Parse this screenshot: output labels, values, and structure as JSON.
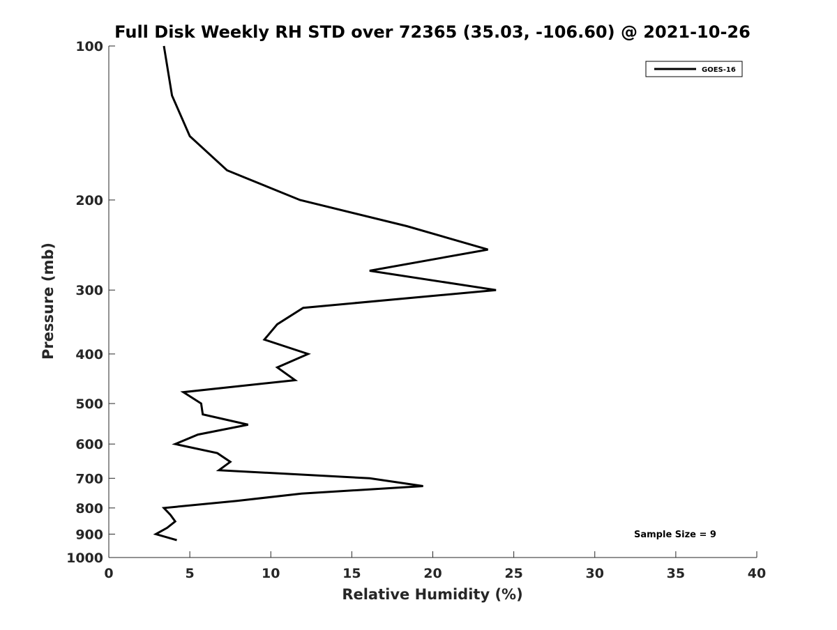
{
  "chart_data": {
    "type": "line",
    "title": "Full Disk Weekly RH STD over 72365 (35.03, -106.60) @ 2021-10-26",
    "xlabel": "Relative Humidity (%)",
    "ylabel": "Pressure (mb)",
    "xlim": [
      0,
      40
    ],
    "ylim": [
      100,
      1000
    ],
    "y_scale": "log",
    "y_reversed": true,
    "grid": false,
    "legend_position": "top-right",
    "x_ticks": [
      0,
      5,
      10,
      15,
      20,
      25,
      30,
      35,
      40
    ],
    "x_tick_labels": [
      "0",
      "5",
      "10",
      "15",
      "20",
      "25",
      "30",
      "35",
      "40"
    ],
    "y_ticks": [
      100,
      200,
      300,
      400,
      500,
      600,
      700,
      800,
      900,
      1000
    ],
    "y_tick_labels": [
      "100",
      "200",
      "300",
      "400",
      "500",
      "600",
      "700",
      "800",
      "900",
      "1000"
    ],
    "series": [
      {
        "name": "GOES-16",
        "color": "#000000",
        "points": [
          {
            "x": 3.4,
            "p": 100
          },
          {
            "x": 3.9,
            "p": 125
          },
          {
            "x": 5.0,
            "p": 150
          },
          {
            "x": 7.3,
            "p": 175
          },
          {
            "x": 11.8,
            "p": 200
          },
          {
            "x": 18.4,
            "p": 225
          },
          {
            "x": 23.4,
            "p": 250
          },
          {
            "x": 16.1,
            "p": 275
          },
          {
            "x": 23.9,
            "p": 300
          },
          {
            "x": 12.0,
            "p": 325
          },
          {
            "x": 10.4,
            "p": 350
          },
          {
            "x": 9.6,
            "p": 375
          },
          {
            "x": 12.3,
            "p": 400
          },
          {
            "x": 10.4,
            "p": 425
          },
          {
            "x": 11.5,
            "p": 450
          },
          {
            "x": 4.6,
            "p": 475
          },
          {
            "x": 5.7,
            "p": 500
          },
          {
            "x": 5.8,
            "p": 525
          },
          {
            "x": 8.6,
            "p": 550
          },
          {
            "x": 5.5,
            "p": 575
          },
          {
            "x": 4.1,
            "p": 600
          },
          {
            "x": 6.7,
            "p": 625
          },
          {
            "x": 7.5,
            "p": 650
          },
          {
            "x": 6.8,
            "p": 675
          },
          {
            "x": 16.1,
            "p": 700
          },
          {
            "x": 19.4,
            "p": 725
          },
          {
            "x": 11.9,
            "p": 750
          },
          {
            "x": 7.9,
            "p": 775
          },
          {
            "x": 3.4,
            "p": 800
          },
          {
            "x": 3.8,
            "p": 825
          },
          {
            "x": 4.1,
            "p": 850
          },
          {
            "x": 3.6,
            "p": 875
          },
          {
            "x": 2.9,
            "p": 900
          },
          {
            "x": 4.2,
            "p": 925
          }
        ]
      }
    ],
    "annotations": [
      {
        "text": "Sample Size = 9",
        "position": "bottom-right"
      }
    ]
  }
}
